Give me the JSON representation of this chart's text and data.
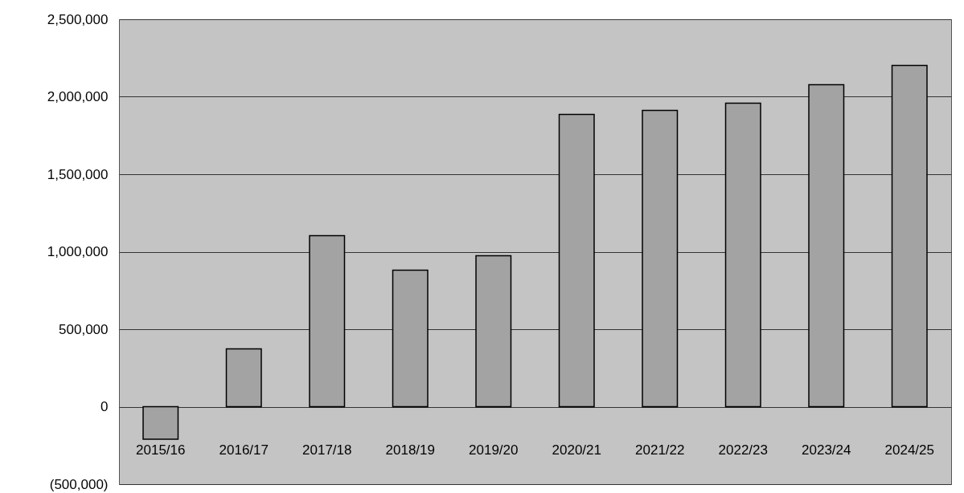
{
  "chart_data": {
    "type": "bar",
    "categories": [
      "2015/16",
      "2016/17",
      "2017/18",
      "2018/19",
      "2019/20",
      "2020/21",
      "2021/22",
      "2022/23",
      "2023/24",
      "2024/25"
    ],
    "values": [
      -210000,
      373000,
      1104000,
      881000,
      974000,
      1886000,
      1912000,
      1959000,
      2078000,
      2202000
    ],
    "color": "#a3a3a3",
    "ylim": [
      -500000,
      2500000
    ],
    "yticks": [
      {
        "value": -500000,
        "label": "(500,000)"
      },
      {
        "value": 0,
        "label": "0"
      },
      {
        "value": 500000,
        "label": "500,000"
      },
      {
        "value": 1000000,
        "label": "1,000,000"
      },
      {
        "value": 1500000,
        "label": "1,500,000"
      },
      {
        "value": 2000000,
        "label": "2,000,000"
      },
      {
        "value": 2500000,
        "label": "2,500,000"
      }
    ],
    "grid": "y"
  }
}
